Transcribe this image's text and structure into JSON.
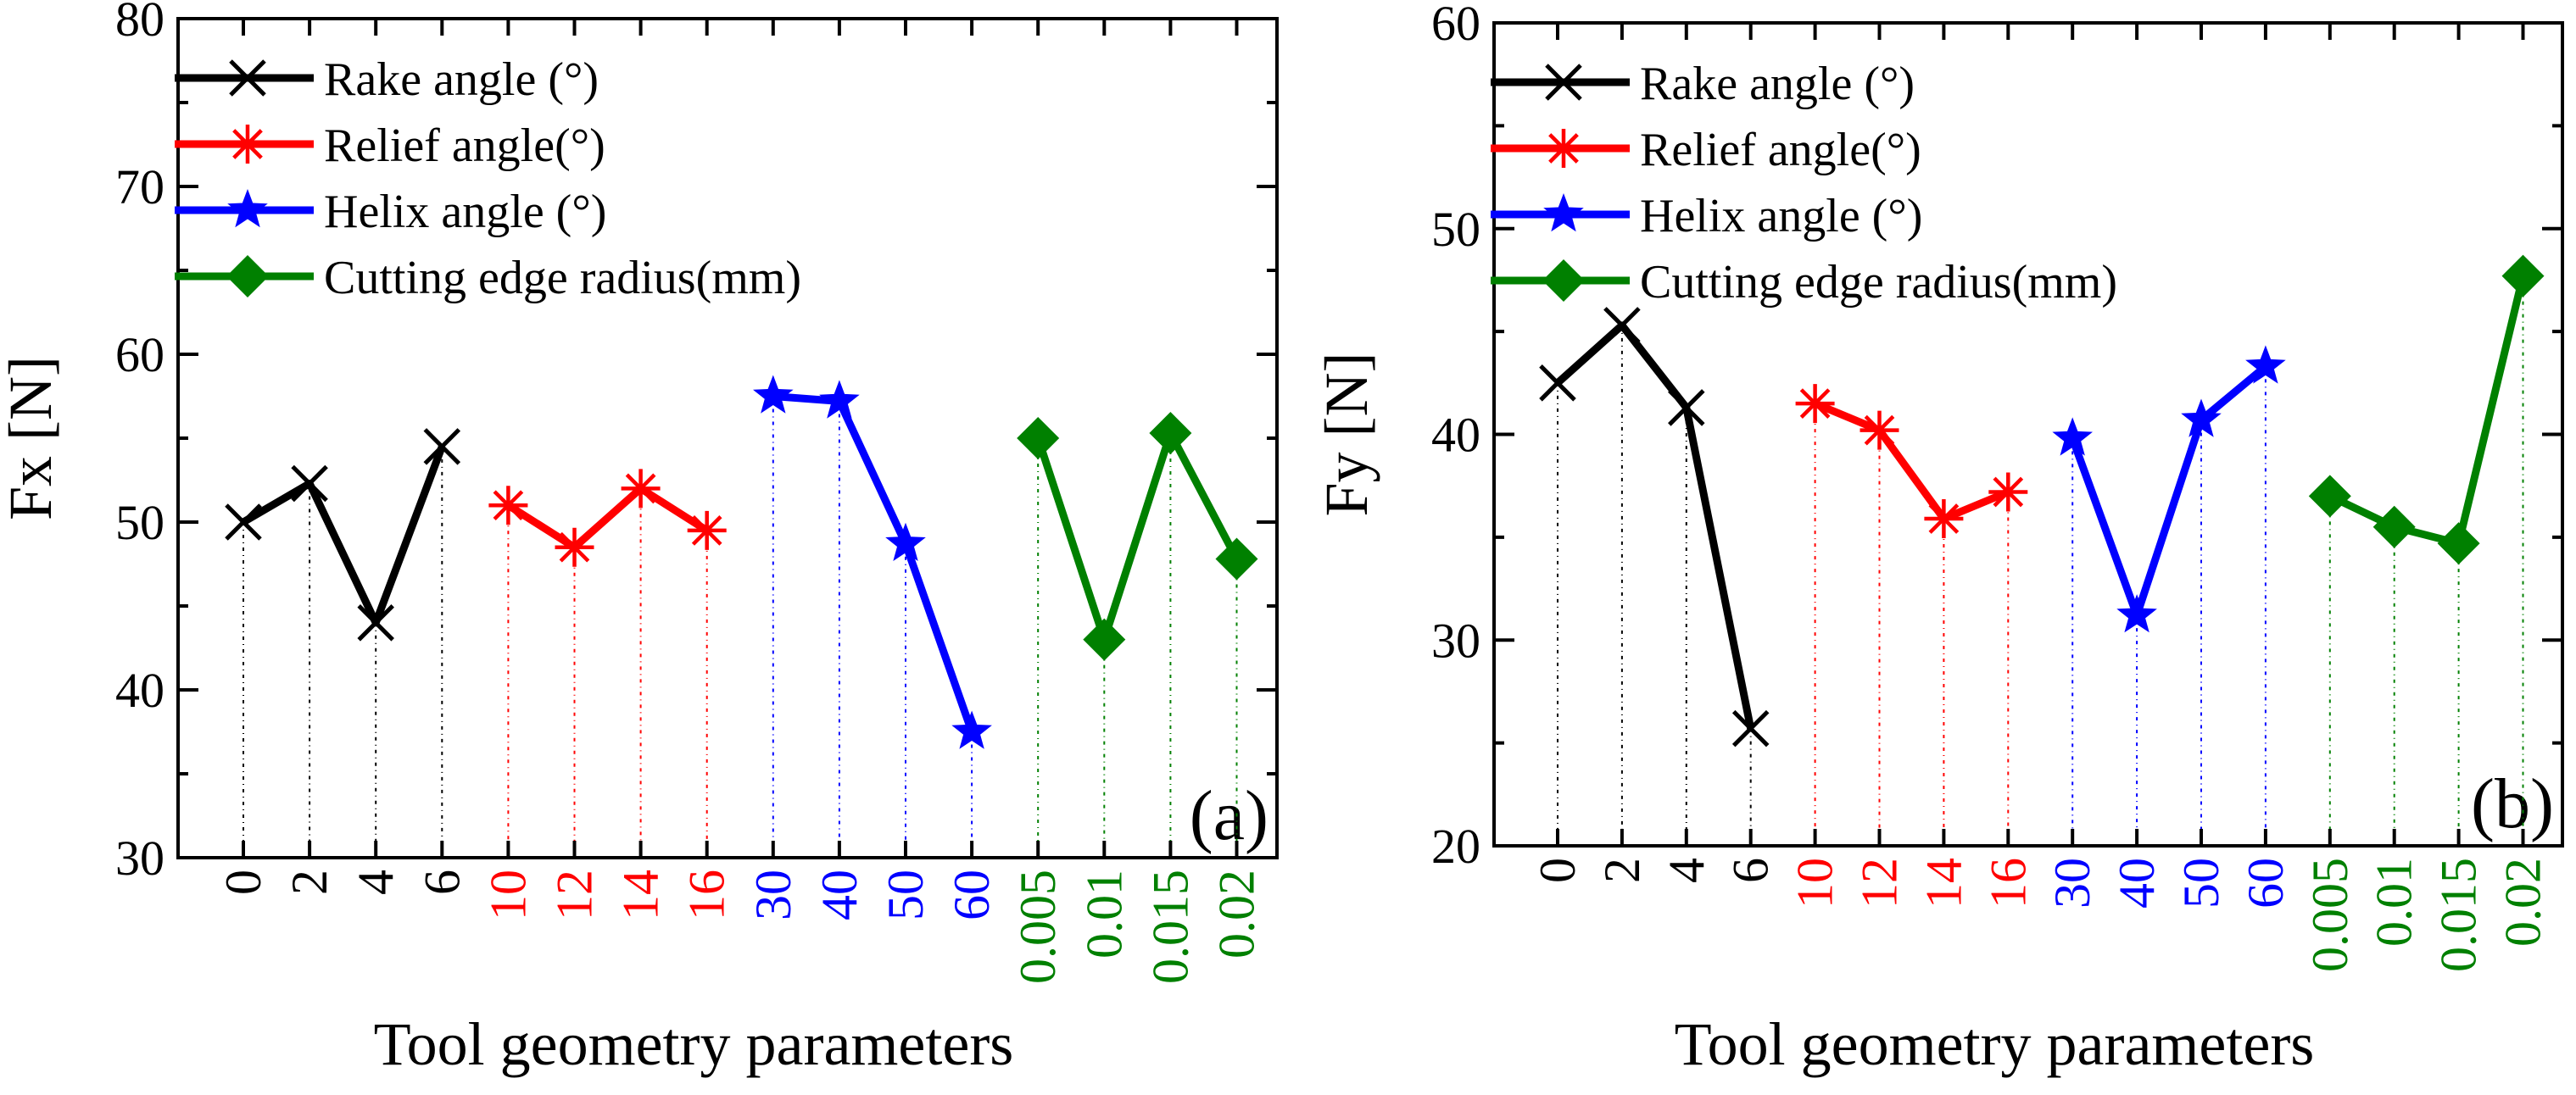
{
  "chart_data": [
    {
      "type": "line",
      "panel_label": "(a)",
      "ylabel": "Fx  [N]",
      "xlabel": "Tool geometry parameters",
      "ylim": [
        30,
        80
      ],
      "yticks": [
        "30",
        "40",
        "50",
        "60",
        "70",
        "80"
      ],
      "series": [
        {
          "name": "Rake angle (°)",
          "color": "#000000",
          "marker": "x",
          "categories": [
            "0",
            "2",
            "4",
            "6"
          ],
          "values": [
            50,
            52.3,
            44,
            54.5
          ]
        },
        {
          "name": "Relief angle(°)",
          "color": "#ff0000",
          "marker": "asterisk",
          "categories": [
            "10",
            "12",
            "14",
            "16"
          ],
          "values": [
            51,
            48.5,
            52,
            49.5
          ]
        },
        {
          "name": "Helix angle (°)",
          "color": "#0000ff",
          "marker": "star",
          "categories": [
            "30",
            "40",
            "50",
            "60"
          ],
          "values": [
            57.5,
            57.2,
            48.7,
            37.5
          ]
        },
        {
          "name": "Cutting edge radius(mm)",
          "color": "#008000",
          "marker": "diamond",
          "categories": [
            "0.005",
            "0.01",
            "0.015",
            "0.02"
          ],
          "values": [
            55,
            43,
            55.3,
            47.8
          ]
        }
      ]
    },
    {
      "type": "line",
      "panel_label": "(b)",
      "ylabel": "Fy  [N]",
      "xlabel": "Tool geometry parameters",
      "ylim": [
        20,
        60
      ],
      "yticks": [
        "20",
        "30",
        "40",
        "50",
        "60"
      ],
      "series": [
        {
          "name": "Rake angle (°)",
          "color": "#000000",
          "marker": "x",
          "categories": [
            "0",
            "2",
            "4",
            "6"
          ],
          "values": [
            42.5,
            45.3,
            41.3,
            25.7
          ]
        },
        {
          "name": "Relief angle(°)",
          "color": "#ff0000",
          "marker": "asterisk",
          "categories": [
            "10",
            "12",
            "14",
            "16"
          ],
          "values": [
            41.5,
            40.2,
            35.9,
            37.2
          ]
        },
        {
          "name": "Helix angle (°)",
          "color": "#0000ff",
          "marker": "star",
          "categories": [
            "30",
            "40",
            "50",
            "60"
          ],
          "values": [
            39.8,
            31.2,
            40.7,
            43.3
          ]
        },
        {
          "name": "Cutting edge radius(mm)",
          "color": "#008000",
          "marker": "diamond",
          "categories": [
            "0.005",
            "0.01",
            "0.015",
            "0.02"
          ],
          "values": [
            37,
            35.5,
            34.7,
            47.7
          ]
        }
      ]
    }
  ]
}
